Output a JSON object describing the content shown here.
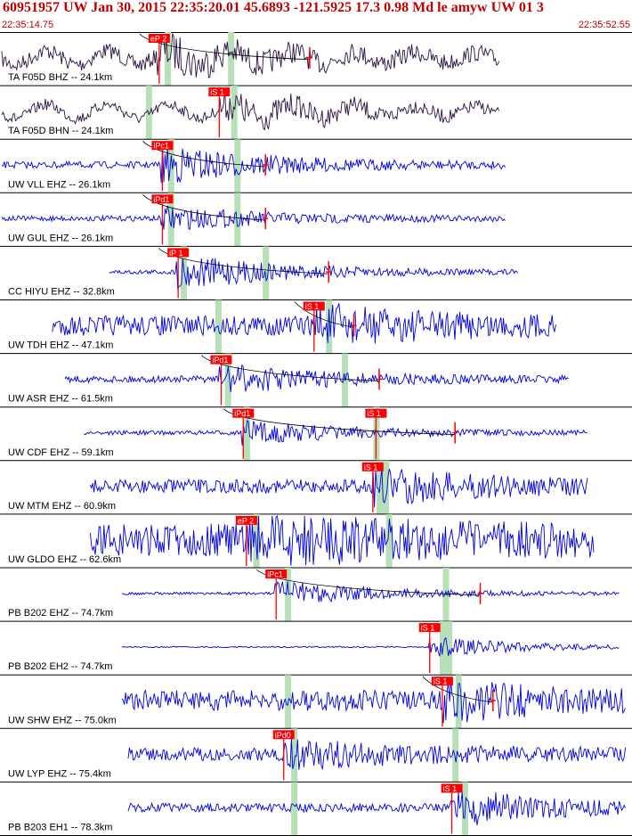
{
  "header": {
    "title": "60951957 UW Jan 30, 2015 22:35:20.01   45.6893 -121.5925 17.3 0.98 Md le amyw UW 01   3",
    "start_time": "22:35:14.75",
    "end_time": "22:35:52.55"
  },
  "colors": {
    "waveform_blue": "#0000e0",
    "waveform_dark": "#2a1040",
    "pick_red": "#ff0000",
    "window_green": "#b8e0b8",
    "header_red": "#c00000"
  },
  "traces": [
    {
      "label": "TA F05D BHZ -- 24.1km",
      "color": "waveform_dark",
      "pick": "eP 2",
      "pick_t": 0.235,
      "s_t": null,
      "start": 0.0,
      "end": 0.79,
      "amp": 0.6,
      "noise": 0.35,
      "win": [
        0.265,
        0.365
      ],
      "curve": true,
      "cross": 0.49
    },
    {
      "label": "TA F05D BHN -- 24.1km",
      "color": "waveform_dark",
      "pick": "iS 1",
      "pick_t": 0.33,
      "s_t": null,
      "start": 0.0,
      "end": 0.79,
      "amp": 0.55,
      "noise": 0.25,
      "win": [
        0.235,
        0.37
      ],
      "curve": false,
      "cross": null
    },
    {
      "label": "UW VLL EHZ -- 26.1km",
      "color": "waveform_blue",
      "pick": "iPc1",
      "pick_t": 0.24,
      "s_t": null,
      "start": 0.0,
      "end": 0.8,
      "amp": 0.8,
      "noise": 0.15,
      "win": [
        0.27,
        0.375
      ],
      "curve": true,
      "cross": 0.42
    },
    {
      "label": "UW GUL EHZ -- 26.1km",
      "color": "waveform_blue",
      "pick": "iPd1",
      "pick_t": 0.24,
      "s_t": null,
      "start": 0.0,
      "end": 0.8,
      "amp": 0.5,
      "noise": 0.12,
      "win": [
        0.27,
        0.375
      ],
      "curve": true,
      "cross": 0.42
    },
    {
      "label": "CC HIYU EHZ -- 32.8km",
      "color": "waveform_blue",
      "pick": "iP 1",
      "pick_t": 0.265,
      "s_t": null,
      "start": 0.17,
      "end": 0.82,
      "amp": 0.75,
      "noise": 0.1,
      "win": [
        0.29,
        0.42
      ],
      "curve": true,
      "cross": 0.52
    },
    {
      "label": "UW TDH EHZ -- 47.1km",
      "color": "waveform_blue",
      "pick": "iS 1",
      "pick_t": 0.48,
      "s_t": null,
      "start": 0.08,
      "end": 0.88,
      "amp": 0.7,
      "noise": 0.45,
      "win": [
        0.345,
        0.52
      ],
      "curve": true,
      "cross": 0.56
    },
    {
      "label": "UW ASR EHZ -- 61.5km",
      "color": "waveform_blue",
      "pick": "iPd1",
      "pick_t": 0.333,
      "s_t": null,
      "start": 0.1,
      "end": 0.9,
      "amp": 0.6,
      "noise": 0.15,
      "win": [
        0.36,
        0.545
      ],
      "curve": true,
      "cross": 0.6
    },
    {
      "label": "UW CDF EHZ -- 59.1km",
      "color": "waveform_blue",
      "pick": "iPd1",
      "pick_t": 0.368,
      "s_t": "iS 1",
      "s_pick_t": 0.578,
      "start": 0.13,
      "end": 0.93,
      "amp": 0.5,
      "noise": 0.1,
      "win": [
        0.39,
        0.595
      ],
      "curve": true,
      "cross": 0.72
    },
    {
      "label": "UW MTM EHZ -- 60.9km",
      "color": "waveform_blue",
      "pick": "iS 1",
      "pick_t": 0.573,
      "s_t": null,
      "start": 0.14,
      "end": 0.93,
      "amp": 0.7,
      "noise": 0.3,
      "win": [
        0.6,
        0.61
      ],
      "curve": false,
      "cross": null
    },
    {
      "label": "UW GLDO EHZ -- 62.6km",
      "color": "waveform_blue",
      "pick": "eP 2",
      "pick_t": 0.373,
      "s_t": null,
      "start": 0.14,
      "end": 0.94,
      "amp": 0.85,
      "noise": 0.75,
      "win": [
        0.405,
        0.615
      ],
      "curve": false,
      "cross": null
    },
    {
      "label": "PB B202 EHZ -- 74.7km",
      "color": "waveform_blue",
      "pick": "iPc1",
      "pick_t": 0.42,
      "s_t": null,
      "start": 0.19,
      "end": 0.98,
      "amp": 0.55,
      "noise": 0.06,
      "win": [
        0.455,
        0.705
      ],
      "curve": true,
      "cross": 0.76
    },
    {
      "label": "PB B202 EH2 -- 74.7km",
      "color": "waveform_blue",
      "pick": "iS 1",
      "pick_t": 0.663,
      "s_t": null,
      "start": 0.19,
      "end": 0.98,
      "amp": 0.45,
      "noise": 0.03,
      "win": [
        0.7,
        0.71
      ],
      "curve": false,
      "cross": null
    },
    {
      "label": "UW SHW EHZ -- 75.0km",
      "color": "waveform_blue",
      "pick": "iS 1",
      "pick_t": 0.683,
      "s_t": null,
      "start": 0.19,
      "end": 0.99,
      "amp": 0.7,
      "noise": 0.45,
      "win": [
        0.455,
        0.725
      ],
      "curve": true,
      "cross": 0.78
    },
    {
      "label": "UW LYP EHZ -- 75.4km",
      "color": "waveform_blue",
      "pick": "iPd0",
      "pick_t": 0.432,
      "s_t": null,
      "start": 0.2,
      "end": 0.99,
      "amp": 0.6,
      "noise": 0.3,
      "win": [
        0.465,
        0.72
      ],
      "curve": false,
      "cross": null
    },
    {
      "label": "PB B203 EH1 -- 78.3km",
      "color": "waveform_blue",
      "pick": "iS 1",
      "pick_t": 0.698,
      "s_t": null,
      "start": 0.2,
      "end": 0.99,
      "amp": 0.75,
      "noise": 0.2,
      "win": [
        0.465,
        0.735
      ],
      "curve": false,
      "cross": null
    }
  ]
}
